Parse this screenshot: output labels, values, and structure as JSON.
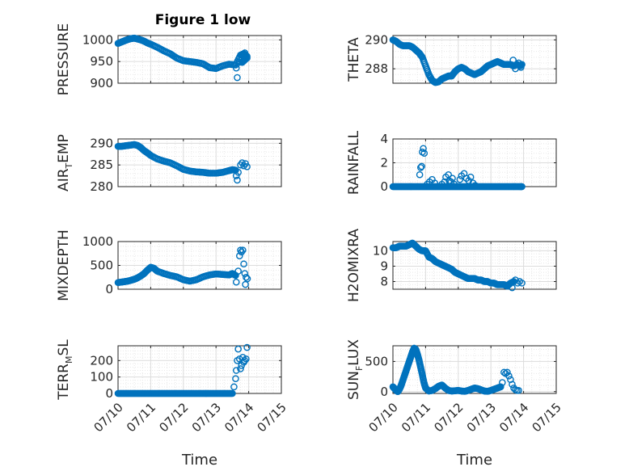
{
  "figure_title": "Figure 1 low",
  "colors": {
    "marker": "#0072BD",
    "axis": "#262626",
    "grid": "#c8c8c8"
  },
  "chart_data": [
    {
      "type": "scatter",
      "title": "Figure 1 low",
      "ylabel": {
        "main": "PRESSURE"
      },
      "ylim": [
        900,
        1010
      ],
      "yticks": [
        900,
        950,
        1000
      ],
      "yticklabels": [
        "900",
        "950",
        "1000"
      ],
      "xlim": [
        0,
        5
      ],
      "xticks": [
        0,
        1,
        2,
        3,
        4,
        5
      ],
      "xticklabels": [
        "07/10",
        "07/11",
        "07/12",
        "07/13",
        "07/14",
        "07/15"
      ],
      "grid": true,
      "x": [
        0,
        0.1,
        0.2,
        0.3,
        0.4,
        0.5,
        0.6,
        0.7,
        0.8,
        0.9,
        1.0,
        1.2,
        1.4,
        1.6,
        1.8,
        2.0,
        2.2,
        2.4,
        2.6,
        2.8,
        3.0,
        3.2,
        3.4,
        3.6,
        3.75,
        3.85,
        3.95,
        3.8,
        3.9
      ],
      "y": [
        992,
        995,
        998,
        1001,
        1003,
        1004,
        1002,
        1000,
        997,
        993,
        990,
        983,
        975,
        968,
        958,
        952,
        950,
        948,
        945,
        936,
        934,
        940,
        944,
        942,
        965,
        968,
        962,
        948,
        955
      ],
      "scatter": [
        [
          3.62,
          935
        ],
        [
          3.65,
          913
        ],
        [
          3.7,
          948
        ],
        [
          3.72,
          958
        ],
        [
          3.88,
          970
        ],
        [
          3.95,
          958
        ]
      ]
    },
    {
      "type": "scatter",
      "ylabel": {
        "main": "THETA"
      },
      "ylim": [
        287,
        290.3
      ],
      "yticks": [
        288,
        290
      ],
      "yticklabels": [
        "288",
        "290"
      ],
      "xlim": [
        0,
        5
      ],
      "xticks": [
        0,
        1,
        2,
        3,
        4,
        5
      ],
      "xticklabels": [
        "07/10",
        "07/11",
        "07/12",
        "07/13",
        "07/14",
        "07/15"
      ],
      "grid": true,
      "x": [
        0,
        0.1,
        0.2,
        0.3,
        0.4,
        0.5,
        0.6,
        0.7,
        0.8,
        0.9,
        1.0,
        1.1,
        1.2,
        1.3,
        1.4,
        1.5,
        1.6,
        1.7,
        1.8,
        1.9,
        2.0,
        2.1,
        2.2,
        2.3,
        2.4,
        2.5,
        2.6,
        2.7,
        2.8,
        2.9,
        3.0,
        3.1,
        3.2,
        3.3,
        3.4,
        3.5,
        3.6,
        3.7,
        3.8,
        3.9,
        3.95
      ],
      "y": [
        290,
        289.9,
        289.7,
        289.6,
        289.6,
        289.6,
        289.5,
        289.3,
        289.1,
        288.8,
        288.2,
        287.6,
        287.2,
        287.05,
        287.1,
        287.3,
        287.4,
        287.5,
        287.5,
        287.8,
        288.0,
        288.1,
        288.0,
        287.8,
        287.7,
        287.6,
        287.7,
        287.8,
        288.0,
        288.2,
        288.3,
        288.4,
        288.5,
        288.4,
        288.3,
        288.3,
        288.3,
        288.2,
        288.3,
        288.2,
        288.3
      ],
      "scatter": [
        [
          3.68,
          288.6
        ],
        [
          3.75,
          288.0
        ],
        [
          3.85,
          288.4
        ],
        [
          3.92,
          288.1
        ]
      ]
    },
    {
      "type": "scatter",
      "ylabel": {
        "main": "AIR",
        "sub": "T",
        "rest": "EMP"
      },
      "ylim": [
        280,
        291
      ],
      "yticks": [
        280,
        285,
        290
      ],
      "yticklabels": [
        "280",
        "285",
        "290"
      ],
      "xlim": [
        0,
        5
      ],
      "xticks": [
        0,
        1,
        2,
        3,
        4,
        5
      ],
      "xticklabels": [
        "07/10",
        "07/11",
        "07/12",
        "07/13",
        "07/14",
        "07/15"
      ],
      "grid": true,
      "x": [
        0,
        0.1,
        0.2,
        0.3,
        0.4,
        0.5,
        0.6,
        0.7,
        0.8,
        0.9,
        1.0,
        1.2,
        1.4,
        1.6,
        1.8,
        2.0,
        2.2,
        2.4,
        2.6,
        2.8,
        3.0,
        3.2,
        3.4,
        3.5,
        3.6
      ],
      "y": [
        289.3,
        289.3,
        289.4,
        289.5,
        289.6,
        289.7,
        289.5,
        289.0,
        288.3,
        287.8,
        287.2,
        286.4,
        285.9,
        285.5,
        284.8,
        284.0,
        283.6,
        283.4,
        283.3,
        283.1,
        283.1,
        283.3,
        283.7,
        283.9,
        283.8
      ],
      "scatter": [
        [
          3.62,
          282.5
        ],
        [
          3.65,
          281.5
        ],
        [
          3.68,
          283.3
        ],
        [
          3.75,
          285.0
        ],
        [
          3.8,
          285.5
        ],
        [
          3.85,
          284.8
        ],
        [
          3.9,
          285.3
        ],
        [
          3.95,
          284.6
        ]
      ]
    },
    {
      "type": "scatter",
      "ylabel": {
        "main": "RAINFALL"
      },
      "ylim": [
        0,
        4
      ],
      "yticks": [
        0,
        2,
        4
      ],
      "yticklabels": [
        "0",
        "2",
        "4"
      ],
      "xlim": [
        0,
        5
      ],
      "xticks": [
        0,
        1,
        2,
        3,
        4,
        5
      ],
      "xticklabels": [
        "07/10",
        "07/11",
        "07/12",
        "07/13",
        "07/14",
        "07/15"
      ],
      "grid": true,
      "x": [
        0,
        0.1,
        0.2,
        0.3,
        0.4,
        0.5,
        0.6,
        0.7,
        0.8,
        0.9,
        1.0,
        1.1,
        1.2,
        1.3,
        1.4,
        1.5,
        1.6,
        1.7,
        1.8,
        1.9,
        2.0,
        2.1,
        2.2,
        2.3,
        2.4,
        2.5,
        2.6,
        2.7,
        2.8,
        2.9,
        3.0,
        3.1,
        3.2,
        3.3,
        3.4,
        3.5,
        3.6,
        3.7,
        3.8,
        3.9,
        3.95
      ],
      "y": [
        0,
        0,
        0,
        0,
        0,
        0,
        0,
        0,
        0,
        0,
        0,
        0,
        0,
        0,
        0,
        0,
        0,
        0,
        0,
        0,
        0,
        0,
        0,
        0,
        0,
        0,
        0,
        0,
        0,
        0,
        0,
        0,
        0,
        0,
        0,
        0,
        0,
        0,
        0,
        0,
        0
      ],
      "scatter": [
        [
          0.82,
          1.0
        ],
        [
          0.85,
          1.6
        ],
        [
          0.88,
          1.7
        ],
        [
          0.9,
          2.9
        ],
        [
          0.93,
          3.2
        ],
        [
          0.96,
          2.8
        ],
        [
          1.05,
          0.2
        ],
        [
          1.12,
          0.4
        ],
        [
          1.2,
          0.6
        ],
        [
          1.28,
          0.3
        ],
        [
          1.5,
          0.2
        ],
        [
          1.58,
          0.4
        ],
        [
          1.62,
          0.8
        ],
        [
          1.7,
          1.0
        ],
        [
          1.72,
          0.5
        ],
        [
          1.78,
          0.4
        ],
        [
          1.82,
          0.7
        ],
        [
          1.88,
          0.2
        ],
        [
          2.05,
          0.6
        ],
        [
          2.1,
          0.9
        ],
        [
          2.18,
          1.1
        ],
        [
          2.25,
          0.7
        ],
        [
          2.32,
          0.5
        ],
        [
          2.38,
          0.8
        ],
        [
          2.45,
          0.3
        ],
        [
          2.52,
          0.1
        ]
      ]
    },
    {
      "type": "scatter",
      "ylabel": {
        "main": "MIXDEPTH"
      },
      "ylim": [
        0,
        1000
      ],
      "yticks": [
        0,
        500,
        1000
      ],
      "yticklabels": [
        "0",
        "500",
        "1000"
      ],
      "xlim": [
        0,
        5
      ],
      "xticks": [
        0,
        1,
        2,
        3,
        4,
        5
      ],
      "xticklabels": [
        "07/10",
        "07/11",
        "07/12",
        "07/13",
        "07/14",
        "07/15"
      ],
      "grid": true,
      "x": [
        0,
        0.1,
        0.2,
        0.3,
        0.4,
        0.5,
        0.6,
        0.7,
        0.8,
        0.9,
        1.0,
        1.1,
        1.2,
        1.4,
        1.6,
        1.8,
        2.0,
        2.2,
        2.4,
        2.6,
        2.8,
        3.0,
        3.2,
        3.4,
        3.5,
        3.6
      ],
      "y": [
        140,
        150,
        160,
        170,
        190,
        210,
        240,
        280,
        330,
        400,
        460,
        440,
        380,
        330,
        290,
        260,
        200,
        170,
        200,
        260,
        300,
        320,
        310,
        300,
        330,
        290
      ],
      "scatter": [
        [
          3.62,
          150
        ],
        [
          3.68,
          380
        ],
        [
          3.72,
          700
        ],
        [
          3.75,
          820
        ],
        [
          3.78,
          780
        ],
        [
          3.82,
          820
        ],
        [
          3.85,
          530
        ],
        [
          3.88,
          330
        ],
        [
          3.9,
          100
        ],
        [
          3.92,
          250
        ],
        [
          3.96,
          220
        ]
      ]
    },
    {
      "type": "scatter",
      "ylabel": {
        "main": "H2OMIXRA"
      },
      "ylim": [
        7.5,
        10.6
      ],
      "yticks": [
        8,
        9,
        10
      ],
      "yticklabels": [
        "8",
        "9",
        "10"
      ],
      "xlim": [
        0,
        5
      ],
      "xticks": [
        0,
        1,
        2,
        3,
        4,
        5
      ],
      "xticklabels": [
        "07/10",
        "07/11",
        "07/12",
        "07/13",
        "07/14",
        "07/15"
      ],
      "grid": true,
      "x": [
        0,
        0.1,
        0.2,
        0.3,
        0.4,
        0.5,
        0.6,
        0.7,
        0.8,
        0.9,
        1.0,
        1.1,
        1.2,
        1.3,
        1.4,
        1.5,
        1.6,
        1.7,
        1.8,
        1.9,
        2.0,
        2.1,
        2.2,
        2.3,
        2.4,
        2.5,
        2.6,
        2.7,
        2.8,
        2.9,
        3.0,
        3.1,
        3.2,
        3.3,
        3.4,
        3.5,
        3.6,
        3.7
      ],
      "y": [
        10.2,
        10.2,
        10.3,
        10.3,
        10.3,
        10.4,
        10.5,
        10.3,
        10.1,
        10.0,
        10.0,
        9.6,
        9.5,
        9.3,
        9.2,
        9.1,
        9.0,
        8.9,
        8.8,
        8.6,
        8.5,
        8.4,
        8.3,
        8.2,
        8.2,
        8.2,
        8.1,
        8.1,
        8.0,
        8.0,
        7.9,
        7.9,
        7.8,
        7.8,
        7.8,
        7.7,
        7.9,
        8.0
      ],
      "scatter": [
        [
          3.65,
          7.6
        ],
        [
          3.75,
          8.1
        ],
        [
          3.82,
          7.9
        ],
        [
          3.88,
          8.0
        ],
        [
          3.95,
          7.9
        ]
      ]
    },
    {
      "type": "scatter",
      "ylabel": {
        "main": "TERR",
        "sub": "M",
        "rest": "SL"
      },
      "ylim": [
        0,
        290
      ],
      "yticks": [
        0,
        100,
        200
      ],
      "yticklabels": [
        "0",
        "100",
        "200"
      ],
      "xlim": [
        0,
        5
      ],
      "xticks": [
        0,
        1,
        2,
        3,
        4,
        5
      ],
      "xticklabels": [
        "07/10",
        "07/11",
        "07/12",
        "07/13",
        "07/14",
        "07/15"
      ],
      "xlabel": "Time",
      "grid": true,
      "x": [
        0,
        0.1,
        0.2,
        0.3,
        0.4,
        0.5,
        0.6,
        0.7,
        0.8,
        0.9,
        1.0,
        1.1,
        1.2,
        1.3,
        1.4,
        1.5,
        1.6,
        1.7,
        1.8,
        1.9,
        2.0,
        2.1,
        2.2,
        2.3,
        2.4,
        2.5,
        2.6,
        2.7,
        2.8,
        2.9,
        3.0,
        3.1,
        3.2,
        3.3,
        3.4,
        3.5
      ],
      "y": [
        0,
        0,
        0,
        0,
        0,
        0,
        0,
        0,
        0,
        0,
        0,
        0,
        0,
        0,
        0,
        0,
        0,
        0,
        0,
        0,
        0,
        0,
        0,
        0,
        0,
        0,
        0,
        0,
        0,
        0,
        0,
        0,
        0,
        0,
        0,
        0
      ],
      "scatter": [
        [
          3.55,
          40
        ],
        [
          3.6,
          90
        ],
        [
          3.62,
          140
        ],
        [
          3.65,
          200
        ],
        [
          3.68,
          270
        ],
        [
          3.72,
          210
        ],
        [
          3.75,
          150
        ],
        [
          3.78,
          170
        ],
        [
          3.82,
          220
        ],
        [
          3.85,
          190
        ],
        [
          3.88,
          200
        ],
        [
          3.92,
          210
        ],
        [
          3.95,
          280
        ]
      ]
    },
    {
      "type": "scatter",
      "ylabel": {
        "main": "SUN",
        "sub": "F",
        "rest": "LUX"
      },
      "ylim": [
        -30,
        760
      ],
      "yticks": [
        0,
        500
      ],
      "yticklabels": [
        "0",
        "500"
      ],
      "xlim": [
        0,
        5
      ],
      "xticks": [
        0,
        1,
        2,
        3,
        4,
        5
      ],
      "xticklabels": [
        "07/10",
        "07/11",
        "07/12",
        "07/13",
        "07/14",
        "07/15"
      ],
      "xlabel": "Time",
      "grid": true,
      "x": [
        0,
        0.05,
        0.1,
        0.15,
        0.2,
        0.25,
        0.3,
        0.35,
        0.4,
        0.45,
        0.5,
        0.55,
        0.6,
        0.65,
        0.7,
        0.75,
        0.8,
        0.85,
        0.9,
        0.95,
        1.0,
        1.1,
        1.2,
        1.3,
        1.4,
        1.5,
        1.6,
        1.7,
        1.8,
        1.9,
        2.0,
        2.1,
        2.2,
        2.3,
        2.4,
        2.5,
        2.6,
        2.7,
        2.8,
        2.9,
        3.0,
        3.1,
        3.2,
        3.3
      ],
      "y": [
        80,
        50,
        20,
        0,
        40,
        100,
        180,
        260,
        340,
        420,
        500,
        580,
        660,
        720,
        700,
        620,
        520,
        400,
        280,
        150,
        60,
        10,
        20,
        50,
        90,
        110,
        60,
        20,
        10,
        15,
        20,
        10,
        5,
        20,
        40,
        60,
        50,
        30,
        10,
        5,
        20,
        40,
        60,
        80
      ],
      "scatter": [
        [
          3.35,
          150
        ],
        [
          3.4,
          320
        ],
        [
          3.45,
          300
        ],
        [
          3.5,
          320
        ],
        [
          3.55,
          260
        ],
        [
          3.6,
          200
        ],
        [
          3.65,
          120
        ],
        [
          3.7,
          60
        ],
        [
          3.75,
          30
        ],
        [
          3.8,
          20
        ],
        [
          3.85,
          20
        ]
      ]
    }
  ]
}
